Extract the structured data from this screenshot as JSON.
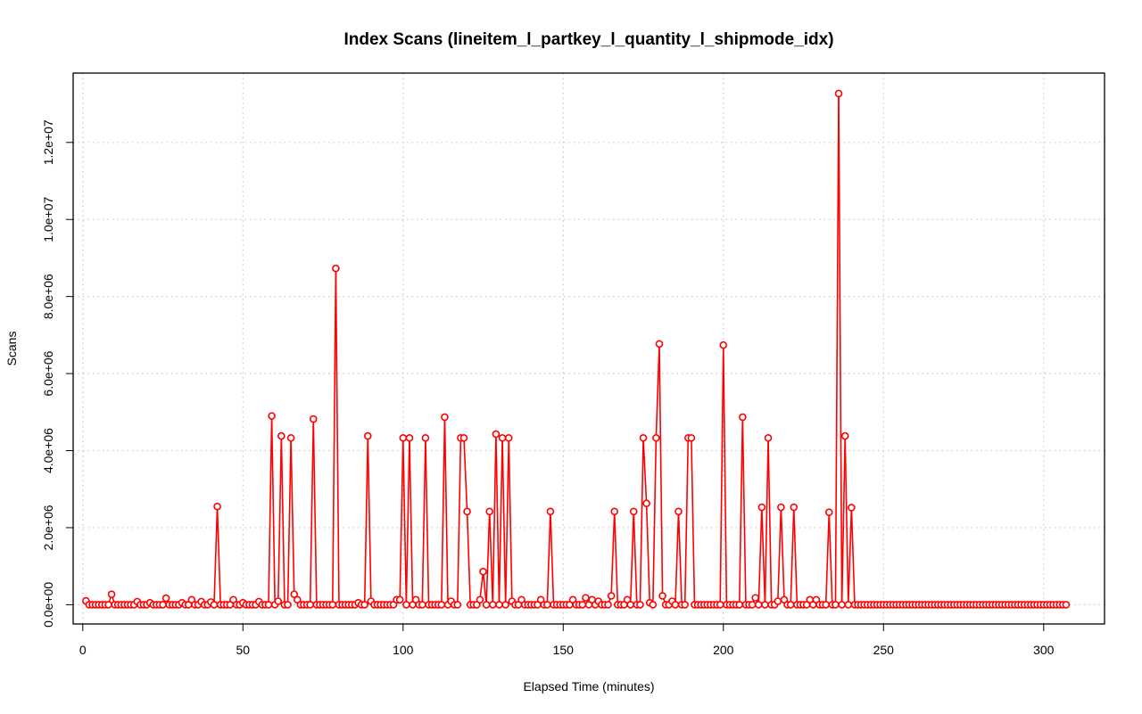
{
  "chart_data": {
    "type": "line",
    "title": "Index Scans (lineitem_l_partkey_l_quantity_l_shipmode_idx)",
    "xlabel": "Elapsed Time (minutes)",
    "ylabel": "Scans",
    "xlim": [
      -3,
      319
    ],
    "ylim": [
      -500000,
      13800000
    ],
    "x_ticks": [
      0,
      50,
      100,
      150,
      200,
      250,
      300
    ],
    "x_tick_labels": [
      "0",
      "50",
      "100",
      "150",
      "200",
      "250",
      "300"
    ],
    "y_ticks": [
      0,
      2000000,
      4000000,
      6000000,
      8000000,
      10000000,
      12000000
    ],
    "y_tick_labels": [
      "0.0e+00",
      "2.0e+06",
      "4.0e+06",
      "6.0e+06",
      "8.0e+06",
      "1.0e+07",
      "1.2e+07"
    ],
    "grid": true,
    "line_color": "#ff0000",
    "marker": "open-circle",
    "x_range": [
      1,
      307
    ],
    "default_value": 0,
    "spikes": {
      "1": 100000,
      "9": 270000,
      "17": 80000,
      "21": 50000,
      "26": 170000,
      "31": 50000,
      "34": 130000,
      "37": 80000,
      "40": 70000,
      "42": 2550000,
      "47": 130000,
      "50": 50000,
      "55": 80000,
      "59": 4900000,
      "61": 90000,
      "62": 4380000,
      "65": 4330000,
      "66": 270000,
      "67": 130000,
      "72": 4820000,
      "79": 8730000,
      "86": 50000,
      "89": 4380000,
      "90": 90000,
      "98": 130000,
      "99": 130000,
      "100": 4330000,
      "102": 4330000,
      "104": 130000,
      "107": 4330000,
      "113": 4870000,
      "115": 90000,
      "118": 4330000,
      "119": 4330000,
      "120": 2420000,
      "124": 130000,
      "125": 860000,
      "127": 2420000,
      "129": 4430000,
      "131": 4330000,
      "133": 4330000,
      "134": 90000,
      "137": 130000,
      "143": 130000,
      "146": 2420000,
      "153": 130000,
      "157": 180000,
      "159": 130000,
      "161": 90000,
      "165": 230000,
      "166": 2420000,
      "170": 130000,
      "172": 2420000,
      "175": 4330000,
      "176": 2630000,
      "177": 50000,
      "179": 4330000,
      "180": 6770000,
      "181": 230000,
      "184": 90000,
      "186": 2420000,
      "189": 4330000,
      "190": 4330000,
      "200": 6740000,
      "206": 4870000,
      "210": 180000,
      "212": 2530000,
      "214": 4330000,
      "217": 90000,
      "218": 2530000,
      "219": 130000,
      "222": 2530000,
      "227": 130000,
      "229": 130000,
      "233": 2400000,
      "236": 13270000,
      "238": 4380000,
      "240": 2520000
    }
  }
}
